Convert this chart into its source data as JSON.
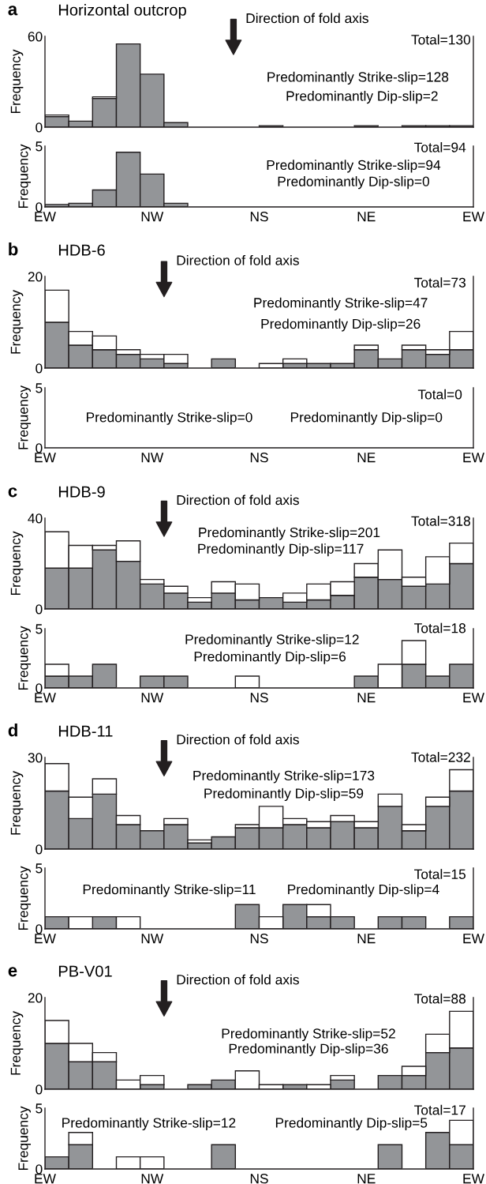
{
  "chart_data": [
    {
      "type": "bar",
      "title": "Horizontal outcrop",
      "ylabel": "Frequency",
      "stacked": true,
      "categories": [
        null,
        null,
        null,
        null,
        null,
        null,
        null,
        null,
        null,
        null,
        null,
        null,
        null,
        null,
        null,
        null,
        null,
        null
      ],
      "ylim": [
        0,
        60
      ],
      "yticks": [
        0,
        60
      ],
      "tick_labels": "y",
      "series": [
        {
          "color": "#939598",
          "values": [
            7,
            4,
            19,
            55,
            35,
            3,
            0,
            0,
            0,
            1,
            0,
            0,
            0,
            1,
            0,
            1,
            1,
            1
          ]
        },
        {
          "color": "#ffffff",
          "values": [
            1,
            0,
            1,
            0,
            0,
            0,
            0,
            0,
            0,
            0,
            0,
            0,
            0,
            0,
            0,
            0,
            0,
            0
          ]
        }
      ],
      "annotations": [
        "a",
        "Direction of fold axis",
        "Total=130",
        "Predominantly Strike-slip=128",
        "Predominantly Dip-slip=2"
      ]
    },
    {
      "type": "bar",
      "ylabel": "Frequency",
      "stacked": true,
      "categories": [
        null,
        null,
        null,
        null,
        null,
        null,
        null,
        null,
        null,
        null,
        null,
        null,
        null,
        null,
        null,
        null,
        null,
        null
      ],
      "ylim": [
        0,
        5
      ],
      "yticks": [
        0,
        5
      ],
      "tick_labels": "y",
      "series": [
        {
          "color": "#939598",
          "values": [
            0.2,
            0.3,
            1.4,
            4.5,
            2.7,
            0.3,
            0,
            0,
            0,
            0,
            0,
            0,
            0,
            0,
            0,
            0,
            0,
            0
          ]
        },
        {
          "color": "#ffffff",
          "values": [
            0,
            0,
            0,
            0,
            0,
            0,
            0,
            0,
            0,
            0,
            0,
            0,
            0,
            0,
            0,
            0,
            0,
            0
          ]
        }
      ],
      "annotations": [
        "Total=94",
        "Predominantly Strike-slip=94",
        "Predominantly Dip-slip=0",
        "EW",
        "NW",
        "NS",
        "NE",
        "EW"
      ]
    },
    {
      "type": "bar",
      "title": "HDB-6",
      "ylabel": "Frequency",
      "stacked": true,
      "categories": [
        null,
        null,
        null,
        null,
        null,
        null,
        null,
        null,
        null,
        null,
        null,
        null,
        null,
        null,
        null,
        null,
        null,
        null
      ],
      "ylim": [
        0,
        20
      ],
      "yticks": [
        0,
        20
      ],
      "tick_labels": "y",
      "series": [
        {
          "color": "#939598",
          "values": [
            10,
            5,
            4,
            3,
            2,
            1,
            0,
            2,
            0,
            0,
            1,
            1,
            1,
            4,
            2,
            4,
            3,
            4
          ]
        },
        {
          "color": "#ffffff",
          "values": [
            7,
            3,
            3,
            1,
            1,
            2,
            0,
            0,
            0,
            1,
            1,
            0,
            0,
            1,
            0,
            1,
            1,
            4
          ]
        }
      ],
      "annotations": [
        "b",
        "Direction of fold axis",
        "Total=73",
        "Predominantly Strike-slip=47",
        "Predominantly Dip-slip=26"
      ]
    },
    {
      "type": "bar",
      "ylabel": "Frequency",
      "stacked": true,
      "categories": [
        null,
        null,
        null,
        null,
        null,
        null,
        null,
        null,
        null,
        null,
        null,
        null,
        null,
        null,
        null,
        null,
        null,
        null
      ],
      "ylim": [
        0,
        5
      ],
      "yticks": [
        0,
        5
      ],
      "tick_labels": "y",
      "series": [
        {
          "color": "#939598",
          "values": [
            0,
            0,
            0,
            0,
            0,
            0,
            0,
            0,
            0,
            0,
            0,
            0,
            0,
            0,
            0,
            0,
            0,
            0
          ]
        },
        {
          "color": "#ffffff",
          "values": [
            0,
            0,
            0,
            0,
            0,
            0,
            0,
            0,
            0,
            0,
            0,
            0,
            0,
            0,
            0,
            0,
            0,
            0
          ]
        }
      ],
      "annotations": [
        "Total=0",
        "Predominantly Strike-slip=0",
        "Predominantly Dip-slip=0",
        "EW",
        "NW",
        "NS",
        "NE",
        "EW"
      ]
    },
    {
      "type": "bar",
      "title": "HDB-9",
      "ylabel": "Frequency",
      "stacked": true,
      "categories": [
        null,
        null,
        null,
        null,
        null,
        null,
        null,
        null,
        null,
        null,
        null,
        null,
        null,
        null,
        null,
        null,
        null,
        null
      ],
      "ylim": [
        0,
        40
      ],
      "yticks": [
        0,
        40
      ],
      "tick_labels": "y",
      "series": [
        {
          "color": "#939598",
          "values": [
            18,
            18,
            26,
            21,
            11,
            7,
            3,
            7,
            4,
            5,
            3,
            4,
            6,
            14,
            13,
            10,
            11,
            20
          ]
        },
        {
          "color": "#ffffff",
          "values": [
            16,
            10,
            2,
            9,
            2,
            3,
            2,
            5,
            7,
            0,
            4,
            7,
            6,
            6,
            13,
            4,
            12,
            9
          ]
        }
      ],
      "annotations": [
        "c",
        "Direction of fold axis",
        "Total=318",
        "Predominantly Strike-slip=201",
        "Predominantly Dip-slip=117"
      ]
    },
    {
      "type": "bar",
      "ylabel": "Frequency",
      "stacked": true,
      "categories": [
        null,
        null,
        null,
        null,
        null,
        null,
        null,
        null,
        null,
        null,
        null,
        null,
        null,
        null,
        null,
        null,
        null,
        null
      ],
      "ylim": [
        0,
        5
      ],
      "yticks": [
        0,
        5
      ],
      "tick_labels": "y",
      "series": [
        {
          "color": "#939598",
          "values": [
            1,
            1,
            2,
            0,
            1,
            1,
            0,
            0,
            0,
            0,
            0,
            0,
            0,
            1,
            0,
            2,
            1,
            2
          ]
        },
        {
          "color": "#ffffff",
          "values": [
            1,
            0,
            0,
            0,
            0,
            0,
            0,
            0,
            1,
            0,
            0,
            0,
            0,
            0,
            2,
            2,
            0,
            0
          ]
        }
      ],
      "annotations": [
        "Total=18",
        "Predominantly Strike-slip=12",
        "Predominantly Dip-slip=6",
        "EW",
        "NW",
        "NS",
        "NE",
        "EW"
      ]
    },
    {
      "type": "bar",
      "title": "HDB-11",
      "ylabel": "Frequency",
      "stacked": true,
      "categories": [
        null,
        null,
        null,
        null,
        null,
        null,
        null,
        null,
        null,
        null,
        null,
        null,
        null,
        null,
        null,
        null,
        null,
        null
      ],
      "ylim": [
        0,
        30
      ],
      "yticks": [
        0,
        30
      ],
      "tick_labels": "y",
      "series": [
        {
          "color": "#939598",
          "values": [
            19,
            10,
            18,
            8,
            6,
            8,
            2,
            4,
            7,
            7,
            8,
            7,
            9,
            7,
            14,
            6,
            14,
            19
          ]
        },
        {
          "color": "#ffffff",
          "values": [
            9,
            7,
            5,
            3,
            0,
            2,
            1,
            0,
            1,
            7,
            2,
            2,
            2,
            2,
            4,
            2,
            3,
            7
          ]
        }
      ],
      "annotations": [
        "d",
        "Direction of fold axis",
        "Total=232",
        "Predominantly Strike-slip=173",
        "Predominantly Dip-slip=59"
      ]
    },
    {
      "type": "bar",
      "ylabel": "Frequency",
      "stacked": true,
      "categories": [
        null,
        null,
        null,
        null,
        null,
        null,
        null,
        null,
        null,
        null,
        null,
        null,
        null,
        null,
        null,
        null,
        null,
        null
      ],
      "ylim": [
        0,
        5
      ],
      "yticks": [
        0,
        5
      ],
      "tick_labels": "y",
      "series": [
        {
          "color": "#939598",
          "values": [
            1,
            0,
            1,
            0,
            0,
            0,
            0,
            0,
            2,
            0,
            2,
            1,
            1,
            0,
            1,
            1,
            0,
            1
          ]
        },
        {
          "color": "#ffffff",
          "values": [
            0,
            1,
            0,
            1,
            0,
            0,
            0,
            0,
            0,
            1,
            0,
            1,
            0,
            0,
            0,
            0,
            0,
            0
          ]
        }
      ],
      "annotations": [
        "Total=15",
        "Predominantly Strike-slip=11",
        "Predominantly Dip-slip=4",
        "EW",
        "NW",
        "NS",
        "NE",
        "EW"
      ]
    },
    {
      "type": "bar",
      "title": "PB-V01",
      "ylabel": "Frequency",
      "stacked": true,
      "categories": [
        null,
        null,
        null,
        null,
        null,
        null,
        null,
        null,
        null,
        null,
        null,
        null,
        null,
        null,
        null,
        null,
        null,
        null
      ],
      "ylim": [
        0,
        20
      ],
      "yticks": [
        0,
        20
      ],
      "tick_labels": "y",
      "series": [
        {
          "color": "#939598",
          "values": [
            10,
            6,
            6,
            0,
            1,
            0,
            1,
            2,
            0,
            0,
            1,
            0,
            2,
            0,
            3,
            3,
            8,
            9
          ]
        },
        {
          "color": "#ffffff",
          "values": [
            5,
            4,
            2,
            2,
            2,
            0,
            0,
            0,
            4,
            1,
            0,
            1,
            1,
            0,
            0,
            2,
            4,
            8
          ]
        }
      ],
      "annotations": [
        "e",
        "Direction of fold axis",
        "Total=88",
        "Predominantly Strike-slip=52",
        "Predominantly Dip-slip=36"
      ]
    },
    {
      "type": "bar",
      "ylabel": "Frequency",
      "stacked": true,
      "categories": [
        null,
        null,
        null,
        null,
        null,
        null,
        null,
        null,
        null,
        null,
        null,
        null,
        null,
        null,
        null,
        null,
        null,
        null
      ],
      "ylim": [
        0,
        5
      ],
      "yticks": [
        0,
        5
      ],
      "tick_labels": "y",
      "series": [
        {
          "color": "#939598",
          "values": [
            1,
            2,
            0,
            0,
            0,
            0,
            0,
            2,
            0,
            0,
            0,
            0,
            0,
            0,
            2,
            0,
            3,
            2
          ]
        },
        {
          "color": "#ffffff",
          "values": [
            0,
            1,
            0,
            1,
            1,
            0,
            0,
            0,
            0,
            0,
            0,
            0,
            0,
            0,
            0,
            0,
            0,
            2
          ]
        }
      ],
      "annotations": [
        "Total=17",
        "Predominantly Strike-slip=12",
        "Predominantly Dip-slip=5",
        "EW",
        "NW",
        "NS",
        "NE",
        "EW"
      ]
    }
  ]
}
